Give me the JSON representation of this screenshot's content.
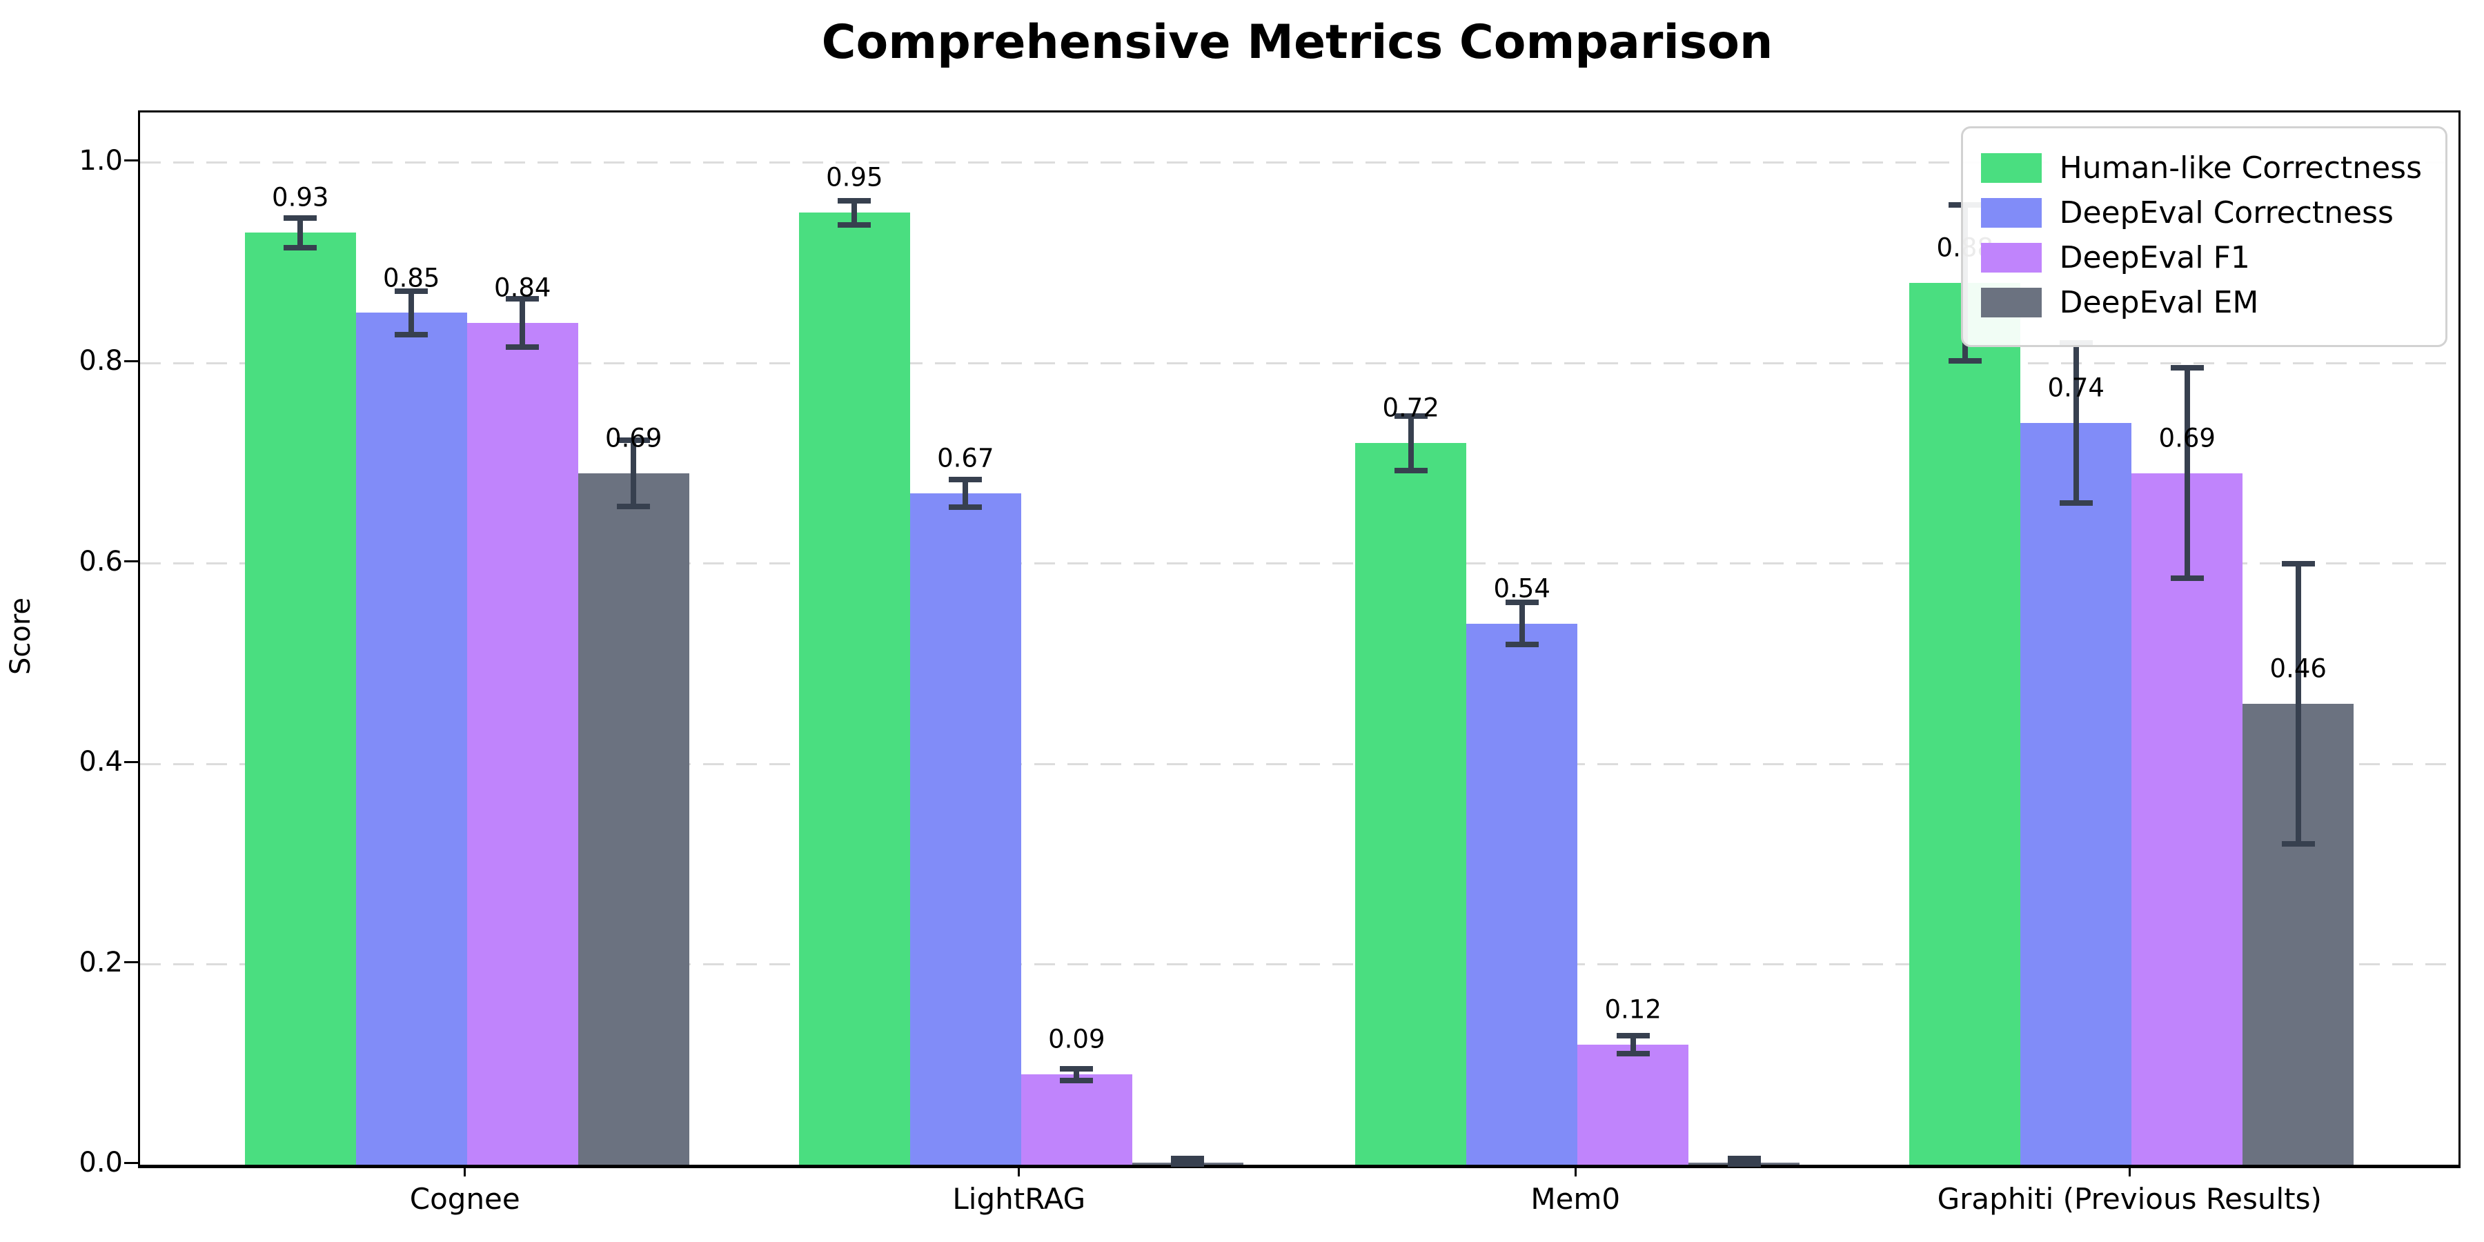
{
  "title": "Comprehensive Metrics Comparison",
  "colors": {
    "axis": "#000000",
    "grid": "#dcdcdc",
    "errorbar": "#37404f",
    "text": "#000000",
    "legend_border": "#d2d2d2"
  },
  "chart_data": {
    "type": "bar",
    "title": "Comprehensive Metrics Comparison",
    "xlabel": "",
    "ylabel": "Score",
    "ylim": [
      0,
      1.05
    ],
    "yticks": [
      "0.0",
      "0.2",
      "0.4",
      "0.6",
      "0.8",
      "1.0"
    ],
    "ytick_values": [
      0.0,
      0.2,
      0.4,
      0.6,
      0.8,
      1.0
    ],
    "grid": "horizontal-dashed",
    "legend_position": "upper-right",
    "categories": [
      "Cognee",
      "LightRAG",
      "Mem0",
      "Graphiti (Previous Results)"
    ],
    "series": [
      {
        "name": "Human-like Correctness",
        "color": "#4ade80",
        "values": [
          0.93,
          0.95,
          0.72,
          0.88
        ],
        "errors": [
          0.015,
          0.012,
          0.027,
          0.078
        ],
        "value_labels": [
          "0.93",
          "0.95",
          "0.72",
          "0.88"
        ]
      },
      {
        "name": "DeepEval Correctness",
        "color": "#818cf8",
        "values": [
          0.85,
          0.67,
          0.54,
          0.74
        ],
        "errors": [
          0.022,
          0.014,
          0.021,
          0.08
        ],
        "value_labels": [
          "0.85",
          "0.67",
          "0.54",
          "0.74"
        ]
      },
      {
        "name": "DeepEval F1",
        "color": "#c084fc",
        "values": [
          0.84,
          0.09,
          0.12,
          0.69
        ],
        "errors": [
          0.024,
          0.006,
          0.009,
          0.105
        ],
        "value_labels": [
          "0.84",
          "0.09",
          "0.12",
          "0.69"
        ]
      },
      {
        "name": "DeepEval EM",
        "color": "#6b7280",
        "values": [
          0.69,
          0.002,
          0.002,
          0.46
        ],
        "errors": [
          0.033,
          0.004,
          0.004,
          0.14
        ],
        "value_labels": [
          "0.69",
          null,
          null,
          "0.46"
        ]
      }
    ]
  }
}
